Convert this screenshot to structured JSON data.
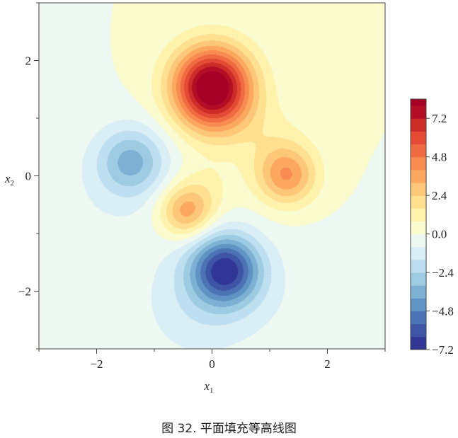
{
  "caption": "图 32. 平面填充等高线图",
  "chart_data": {
    "type": "filled-contour",
    "title": "",
    "xlabel": "x",
    "xlabel_sub": "1",
    "ylabel": "x",
    "ylabel_sub": "2",
    "xlim": [
      -3,
      3
    ],
    "ylim": [
      -3,
      3
    ],
    "x_ticks": [
      -2,
      0,
      2
    ],
    "y_ticks": [
      -2,
      0,
      2
    ],
    "x_tick_labels": [
      "−2",
      "0",
      "2"
    ],
    "y_tick_labels": [
      "−2",
      "0",
      "2"
    ],
    "grid": false,
    "z_range": [
      -7.2,
      8.4
    ],
    "levels": [
      -7.2,
      -6.4,
      -5.6,
      -4.8,
      -4.0,
      -3.2,
      -2.4,
      -1.6,
      -0.8,
      0.0,
      0.8,
      1.6,
      2.4,
      3.2,
      4.0,
      4.8,
      5.6,
      6.4,
      7.2,
      8.0,
      8.4
    ],
    "level_colors": [
      "#313695",
      "#3e54a4",
      "#4c73b4",
      "#6193c4",
      "#7db0d3",
      "#9dcbe2",
      "#bddff0",
      "#d9eef5",
      "#eef8f2",
      "#fafbcf",
      "#fff2ac",
      "#fee090",
      "#fdc779",
      "#fca95f",
      "#f88b51",
      "#f06a42",
      "#e34b35",
      "#cd2d28",
      "#b40d26",
      "#a50026"
    ],
    "colorbar_ticks": [
      7.2,
      4.8,
      2.4,
      0.0,
      -2.4,
      -4.8,
      -7.2
    ],
    "colorbar_tick_labels": [
      "7.2",
      "4.8",
      "2.4",
      "0.0",
      "−2.4",
      "−4.8",
      "−7.2"
    ],
    "extrema": [
      {
        "x": 0.0,
        "y": 1.58,
        "z": 8.1,
        "kind": "max"
      },
      {
        "x": 1.3,
        "y": 0.0,
        "z": 3.8,
        "kind": "max"
      },
      {
        "x": -0.45,
        "y": -0.62,
        "z": 3.6,
        "kind": "max"
      },
      {
        "x": -1.4,
        "y": 0.25,
        "z": -3.3,
        "kind": "min"
      },
      {
        "x": 0.23,
        "y": -1.63,
        "z": -6.5,
        "kind": "min"
      }
    ]
  }
}
